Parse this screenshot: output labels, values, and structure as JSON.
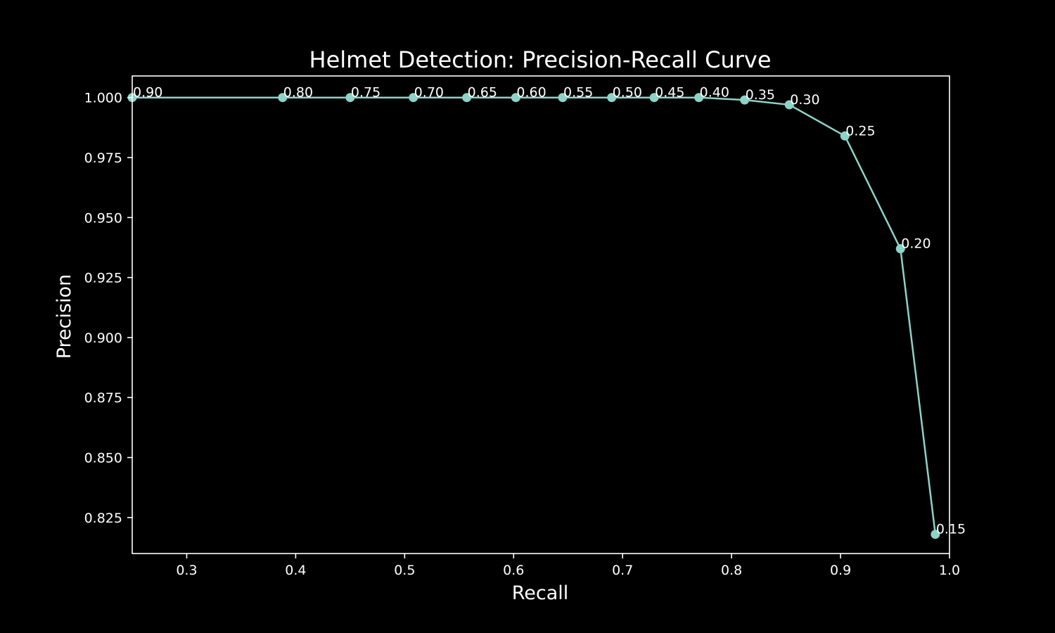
{
  "chart_data": {
    "type": "line",
    "title": "Helmet Detection: Precision-Recall Curve",
    "xlabel": "Recall",
    "ylabel": "Precision",
    "xlim": [
      0.25,
      1.0
    ],
    "ylim": [
      0.81,
      1.009
    ],
    "xticks": [
      0.3,
      0.4,
      0.5,
      0.6,
      0.7,
      0.8,
      0.9,
      1.0
    ],
    "xtick_labels": [
      "0.3",
      "0.4",
      "0.5",
      "0.6",
      "0.7",
      "0.8",
      "0.9",
      "1.0"
    ],
    "yticks": [
      0.825,
      0.85,
      0.875,
      0.9,
      0.925,
      0.95,
      0.975,
      1.0
    ],
    "ytick_labels": [
      "0.825",
      "0.850",
      "0.875",
      "0.900",
      "0.925",
      "0.950",
      "0.975",
      "1.000"
    ],
    "grid": false,
    "line_color": "#8dd3c7",
    "background_color": "#000000",
    "series": [
      {
        "points": [
          {
            "recall": 0.25,
            "precision": 1.0,
            "label": "0.90"
          },
          {
            "recall": 0.388,
            "precision": 1.0,
            "label": "0.80"
          },
          {
            "recall": 0.45,
            "precision": 1.0,
            "label": "0.75"
          },
          {
            "recall": 0.508,
            "precision": 1.0,
            "label": "0.70"
          },
          {
            "recall": 0.557,
            "precision": 1.0,
            "label": "0.65"
          },
          {
            "recall": 0.602,
            "precision": 1.0,
            "label": "0.60"
          },
          {
            "recall": 0.645,
            "precision": 1.0,
            "label": "0.55"
          },
          {
            "recall": 0.69,
            "precision": 1.0,
            "label": "0.50"
          },
          {
            "recall": 0.729,
            "precision": 1.0,
            "label": "0.45"
          },
          {
            "recall": 0.77,
            "precision": 1.0,
            "label": "0.40"
          },
          {
            "recall": 0.812,
            "precision": 0.999,
            "label": "0.35"
          },
          {
            "recall": 0.853,
            "precision": 0.997,
            "label": "0.30"
          },
          {
            "recall": 0.904,
            "precision": 0.984,
            "label": "0.25"
          },
          {
            "recall": 0.955,
            "precision": 0.937,
            "label": "0.20"
          },
          {
            "recall": 0.987,
            "precision": 0.818,
            "label": "0.15"
          }
        ]
      }
    ]
  }
}
